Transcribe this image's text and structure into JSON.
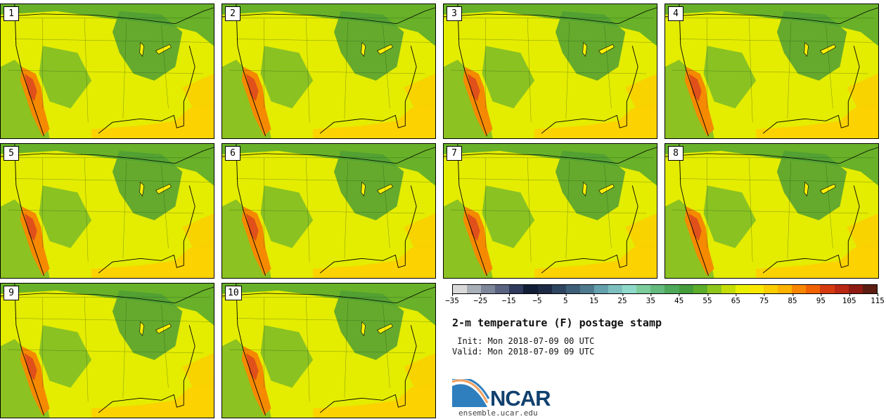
{
  "title": "2-m temperature (F) postage stamp",
  "init_line": " Init: Mon 2018-07-09 00 UTC",
  "valid_line": "Valid: Mon 2018-07-09 09 UTC",
  "logo_text": "NCAR",
  "site": "ensemble.ucar.edu",
  "panels": [
    "1",
    "2",
    "3",
    "4",
    "5",
    "6",
    "7",
    "8",
    "9",
    "10"
  ],
  "colorbar": {
    "colors": [
      "#d9d9d9",
      "#a9afb7",
      "#7e8799",
      "#5a6480",
      "#2f3a5c",
      "#121d36",
      "#1e2a44",
      "#2e4560",
      "#3e5f78",
      "#4e7a8e",
      "#65a0ad",
      "#7dbfbf",
      "#8ed9c9",
      "#7ccc9c",
      "#64b97e",
      "#4ea85a",
      "#449c3a",
      "#5cad29",
      "#8ec61d",
      "#c4dd08",
      "#eaf000",
      "#fae800",
      "#f9cd00",
      "#fbb200",
      "#f88600",
      "#f06200",
      "#d63a10",
      "#b92813",
      "#901b12",
      "#5c1d12"
    ],
    "ticks": [
      "−35",
      "−25",
      "−15",
      "−5",
      "5",
      "15",
      "25",
      "35",
      "45",
      "55",
      "65",
      "75",
      "85",
      "95",
      "105",
      "115"
    ]
  }
}
